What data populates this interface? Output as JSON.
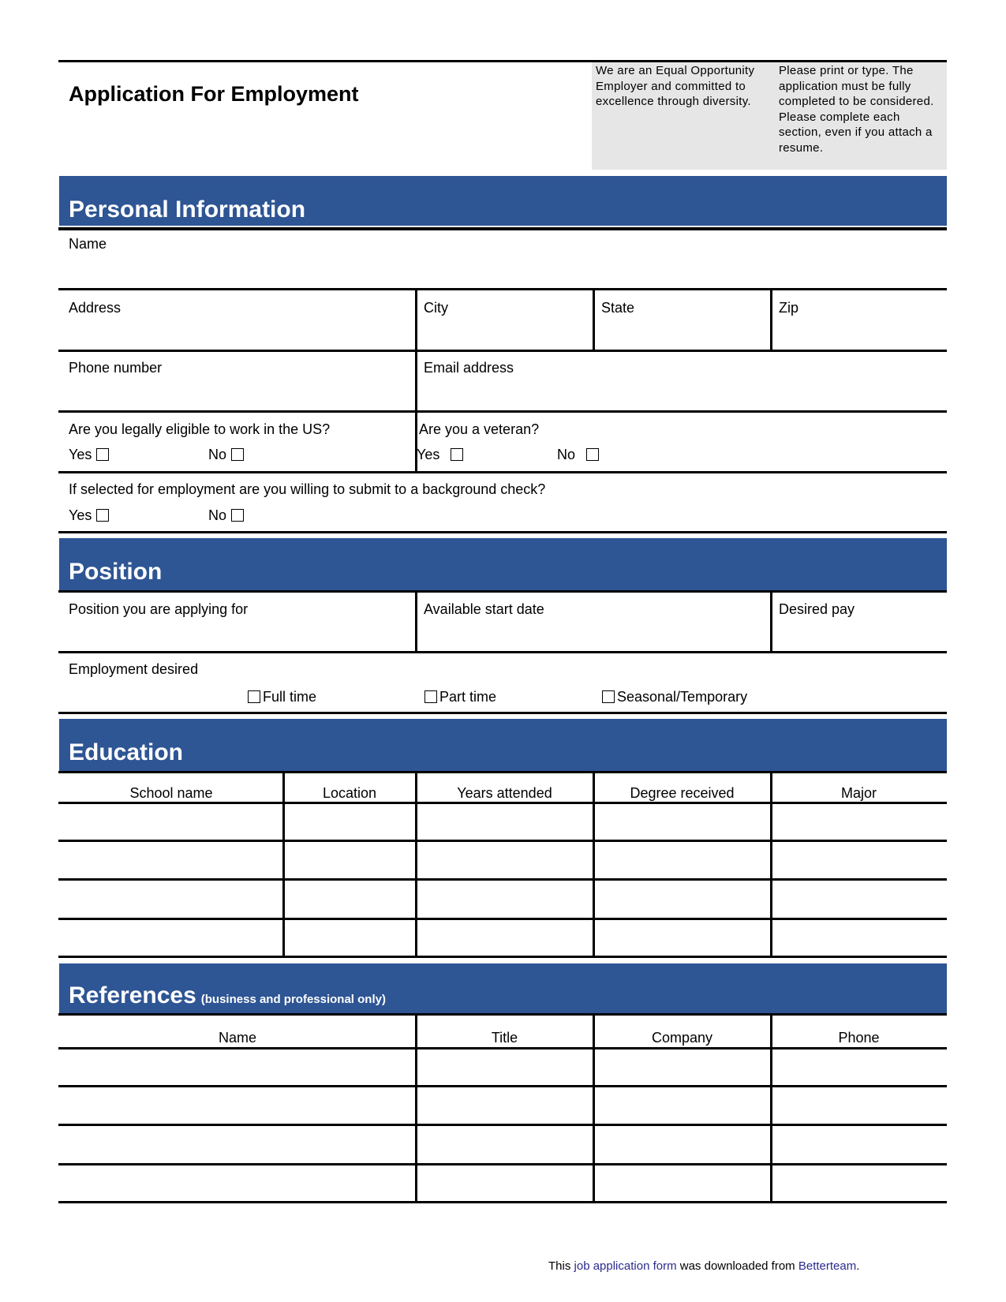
{
  "header": {
    "title": "Application For Employment",
    "eeo_note": "We are an Equal Opportunity Employer and committed to excellence through diversity.",
    "instructions": "Please print or type. The application must be fully completed to be considered. Please complete each section, even if you attach a resume."
  },
  "personal": {
    "heading": "Personal Information",
    "name": "Name",
    "address": "Address",
    "city": "City",
    "state": "State",
    "zip": "Zip",
    "phone": "Phone number",
    "email": "Email address",
    "eligible": "Are you legally eligible to work in the US?",
    "veteran": "Are you a veteran?",
    "background": "If selected for employment are you willing to submit to a background check?",
    "yes": "Yes",
    "no": "No"
  },
  "position": {
    "heading": "Position",
    "applying": "Position you are applying for",
    "start": "Available start date",
    "pay": "Desired pay",
    "employment": "Employment desired",
    "options": [
      "Full time",
      "Part time",
      "Seasonal/Temporary"
    ]
  },
  "education": {
    "heading": "Education",
    "columns": [
      "School name",
      "Location",
      "Years attended",
      "Degree received",
      "Major"
    ]
  },
  "references": {
    "heading": "References",
    "subheading": "(business and professional only)",
    "columns": [
      "Name",
      "Title",
      "Company",
      "Phone"
    ]
  },
  "footer": {
    "pre": "This ",
    "link1": "job application form",
    "mid": " was downloaded from ",
    "link2": "Betterteam",
    "post": "."
  },
  "colors": {
    "band": "#2e5594",
    "gray_box": "#e6e6e6",
    "link": "#2b2b8f"
  }
}
